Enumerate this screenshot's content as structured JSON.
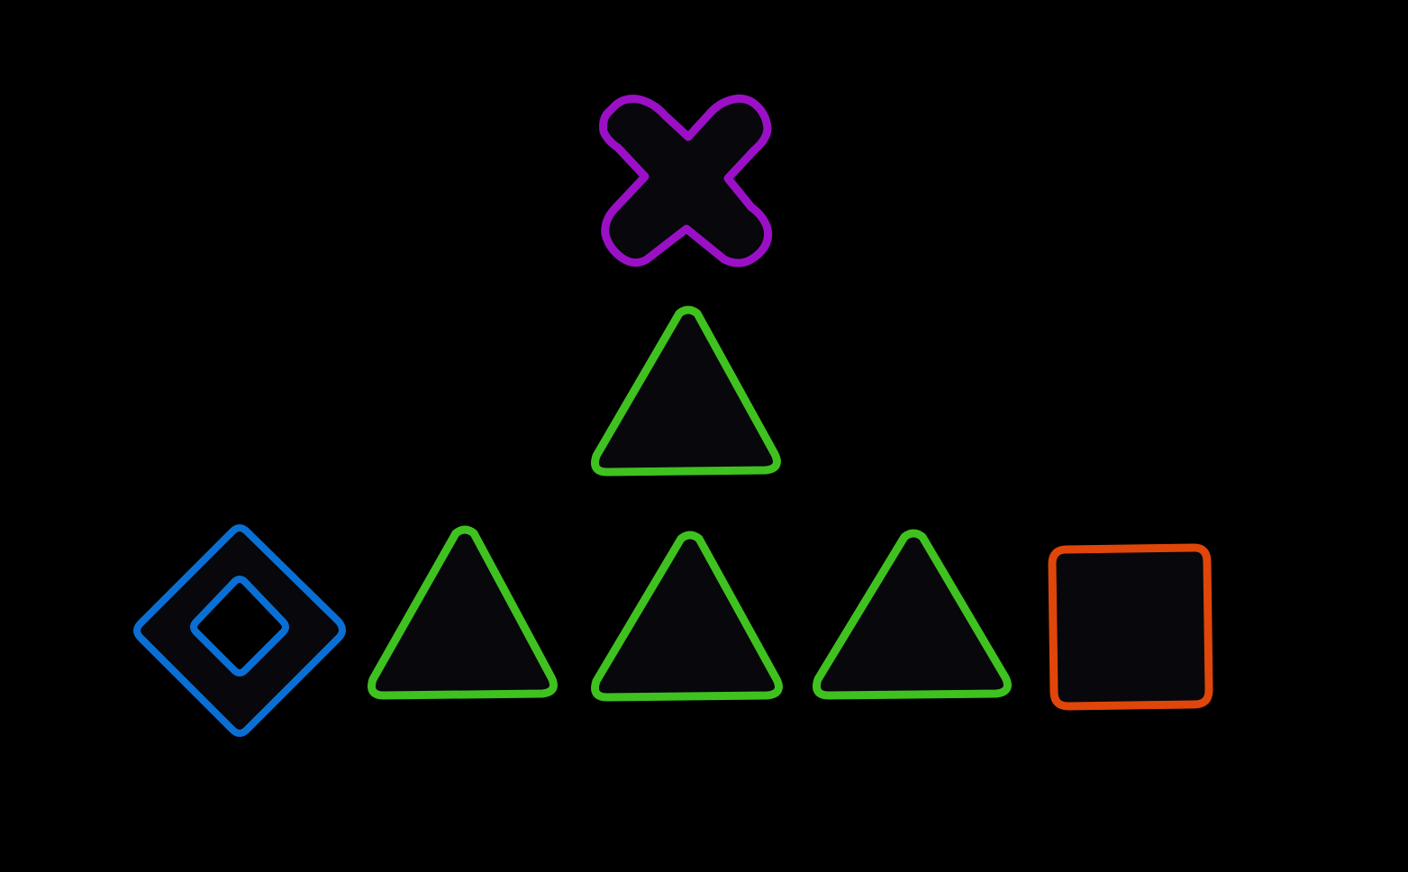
{
  "board": {
    "background": "#000000",
    "tile_fill": "#07070c"
  },
  "tiles": [
    {
      "id": "cross-top",
      "shape": "cross",
      "color": "#9b10c6",
      "icon": "cross-icon"
    },
    {
      "id": "triangle-middle",
      "shape": "triangle",
      "color": "#3fc21f",
      "icon": "triangle-icon"
    },
    {
      "id": "diamond-left",
      "shape": "diamond",
      "color": "#0a6fd4",
      "icon": "diamond-icon"
    },
    {
      "id": "triangle-row-1",
      "shape": "triangle",
      "color": "#3fc21f",
      "icon": "triangle-icon"
    },
    {
      "id": "triangle-row-2",
      "shape": "triangle",
      "color": "#3fc21f",
      "icon": "triangle-icon"
    },
    {
      "id": "triangle-row-3",
      "shape": "triangle",
      "color": "#3fc21f",
      "icon": "triangle-icon"
    },
    {
      "id": "square-right",
      "shape": "square",
      "color": "#e0460a",
      "icon": "square-icon"
    }
  ]
}
